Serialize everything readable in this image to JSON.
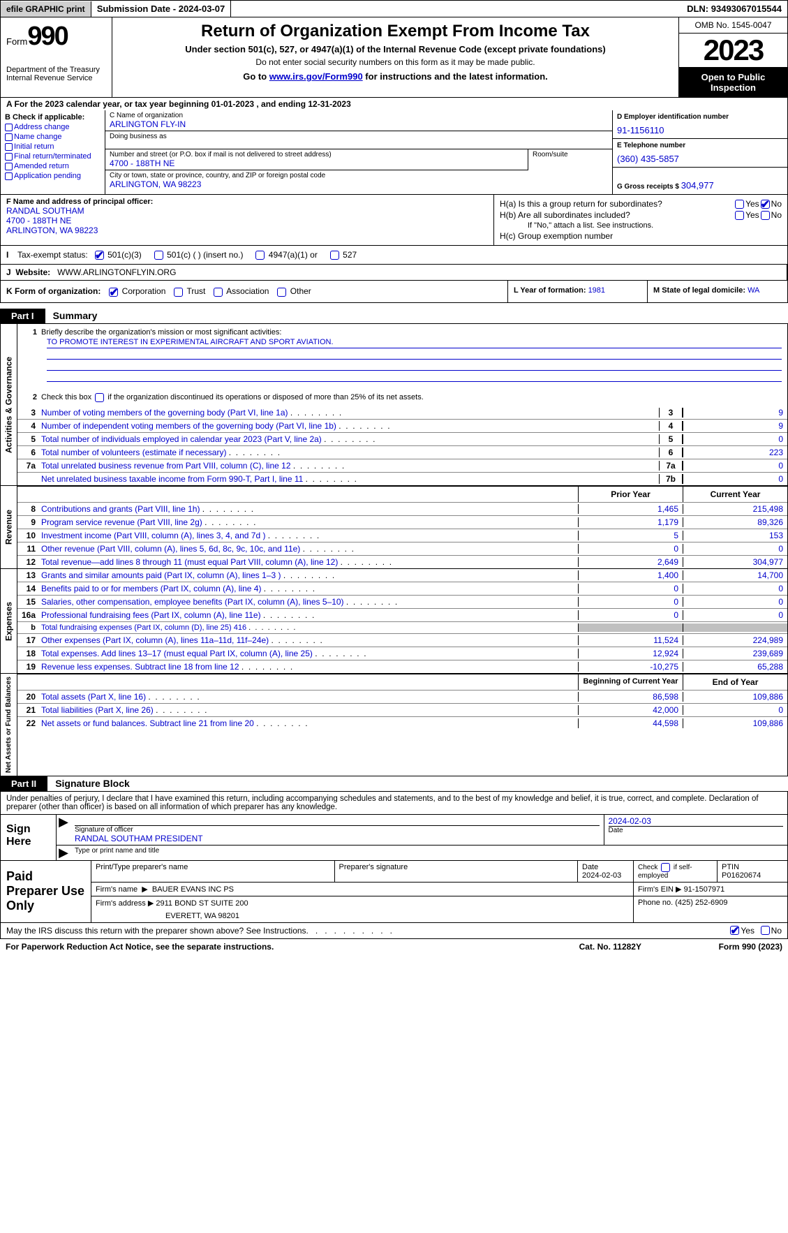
{
  "topbar": {
    "efile": "efile GRAPHIC print",
    "subdate_label": "Submission Date - ",
    "subdate": "2024-03-07",
    "dln_label": "DLN: ",
    "dln": "93493067015544"
  },
  "header": {
    "form_prefix": "Form",
    "form_num": "990",
    "dept": "Department of the Treasury\nInternal Revenue Service",
    "title": "Return of Organization Exempt From Income Tax",
    "sub1": "Under section 501(c), 527, or 4947(a)(1) of the Internal Revenue Code (except private foundations)",
    "sub2": "Do not enter social security numbers on this form as it may be made public.",
    "sub3_pre": "Go to ",
    "sub3_link": "www.irs.gov/Form990",
    "sub3_post": " for instructions and the latest information.",
    "omb": "OMB No. 1545-0047",
    "year": "2023",
    "open": "Open to Public Inspection"
  },
  "row_a": "A For the 2023 calendar year, or tax year beginning 01-01-2023    , and ending 12-31-2023",
  "col_b": {
    "title": "B Check if applicable:",
    "opts": [
      "Address change",
      "Name change",
      "Initial return",
      "Final return/terminated",
      "Amended return",
      "Application pending"
    ]
  },
  "col_c": {
    "name_lbl": "C Name of organization",
    "name": "ARLINGTON FLY-IN",
    "dba_lbl": "Doing business as",
    "dba": "",
    "addr_lbl": "Number and street (or P.O. box if mail is not delivered to street address)",
    "addr": "4700 - 188TH NE",
    "room_lbl": "Room/suite",
    "city_lbl": "City or town, state or province, country, and ZIP or foreign postal code",
    "city": "ARLINGTON, WA  98223"
  },
  "col_deg": {
    "d_lbl": "D Employer identification number",
    "d_val": "91-1156110",
    "e_lbl": "E Telephone number",
    "e_val": "(360) 435-5857",
    "g_lbl": "G Gross receipts $ ",
    "g_val": "304,977"
  },
  "col_f": {
    "lbl": "F  Name and address of principal officer:",
    "name": "RANDAL SOUTHAM",
    "addr1": "4700 - 188TH NE",
    "addr2": "ARLINGTON, WA  98223"
  },
  "col_h": {
    "ha": "H(a)  Is this a group return for subordinates?",
    "hb": "H(b)  Are all subordinates included?",
    "hb_note": "If \"No,\" attach a list. See instructions.",
    "hc": "H(c)  Group exemption number",
    "yes": "Yes",
    "no": "No"
  },
  "tax_exempt": {
    "letter": "I",
    "label": "Tax-exempt status:",
    "o1": "501(c)(3)",
    "o2": "501(c) (  ) (insert no.)",
    "o3": "4947(a)(1) or",
    "o4": "527"
  },
  "website": {
    "letter": "J",
    "label": "Website:",
    "val": "WWW.ARLINGTONFLYIN.ORG"
  },
  "row_k": {
    "label": "K Form of organization:",
    "opts": [
      "Corporation",
      "Trust",
      "Association",
      "Other"
    ],
    "l_lbl": "L Year of formation: ",
    "l_val": "1981",
    "m_lbl": "M State of legal domicile: ",
    "m_val": "WA"
  },
  "part1": {
    "hdr": "Part I",
    "title": "Summary",
    "l1_lbl": "Briefly describe the organization's mission or most significant activities:",
    "l1_val": "TO PROMOTE INTEREST IN EXPERIMENTAL AIRCRAFT AND SPORT AVIATION.",
    "l2": "Check this box         if the organization discontinued its operations or disposed of more than 25% of its net assets.",
    "vlab1": "Activities & Governance",
    "vlab2": "Revenue",
    "vlab3": "Expenses",
    "vlab4": "Net Assets or Fund Balances",
    "col_prior": "Prior Year",
    "col_curr": "Current Year",
    "col_beg": "Beginning of Current Year",
    "col_end": "End of Year",
    "lines_gov": [
      {
        "n": "3",
        "d": "Number of voting members of the governing body (Part VI, line 1a)",
        "box": "3",
        "v": "9"
      },
      {
        "n": "4",
        "d": "Number of independent voting members of the governing body (Part VI, line 1b)",
        "box": "4",
        "v": "9"
      },
      {
        "n": "5",
        "d": "Total number of individuals employed in calendar year 2023 (Part V, line 2a)",
        "box": "5",
        "v": "0"
      },
      {
        "n": "6",
        "d": "Total number of volunteers (estimate if necessary)",
        "box": "6",
        "v": "223"
      },
      {
        "n": "7a",
        "d": "Total unrelated business revenue from Part VIII, column (C), line 12",
        "box": "7a",
        "v": "0"
      },
      {
        "n": "",
        "d": "Net unrelated business taxable income from Form 990-T, Part I, line 11",
        "box": "7b",
        "v": "0"
      }
    ],
    "lines_rev": [
      {
        "n": "8",
        "d": "Contributions and grants (Part VIII, line 1h)",
        "p": "1,465",
        "c": "215,498"
      },
      {
        "n": "9",
        "d": "Program service revenue (Part VIII, line 2g)",
        "p": "1,179",
        "c": "89,326"
      },
      {
        "n": "10",
        "d": "Investment income (Part VIII, column (A), lines 3, 4, and 7d )",
        "p": "5",
        "c": "153"
      },
      {
        "n": "11",
        "d": "Other revenue (Part VIII, column (A), lines 5, 6d, 8c, 9c, 10c, and 11e)",
        "p": "0",
        "c": "0"
      },
      {
        "n": "12",
        "d": "Total revenue—add lines 8 through 11 (must equal Part VIII, column (A), line 12)",
        "p": "2,649",
        "c": "304,977"
      }
    ],
    "lines_exp": [
      {
        "n": "13",
        "d": "Grants and similar amounts paid (Part IX, column (A), lines 1–3 )",
        "p": "1,400",
        "c": "14,700"
      },
      {
        "n": "14",
        "d": "Benefits paid to or for members (Part IX, column (A), line 4)",
        "p": "0",
        "c": "0"
      },
      {
        "n": "15",
        "d": "Salaries, other compensation, employee benefits (Part IX, column (A), lines 5–10)",
        "p": "0",
        "c": "0"
      },
      {
        "n": "16a",
        "d": "Professional fundraising fees (Part IX, column (A), line 11e)",
        "p": "0",
        "c": "0"
      },
      {
        "n": "b",
        "d": "Total fundraising expenses (Part IX, column (D), line 25) 416",
        "p": "",
        "c": "",
        "shade": true,
        "small": true
      },
      {
        "n": "17",
        "d": "Other expenses (Part IX, column (A), lines 11a–11d, 11f–24e)",
        "p": "11,524",
        "c": "224,989"
      },
      {
        "n": "18",
        "d": "Total expenses. Add lines 13–17 (must equal Part IX, column (A), line 25)",
        "p": "12,924",
        "c": "239,689"
      },
      {
        "n": "19",
        "d": "Revenue less expenses. Subtract line 18 from line 12",
        "p": "-10,275",
        "c": "65,288"
      }
    ],
    "lines_net": [
      {
        "n": "20",
        "d": "Total assets (Part X, line 16)",
        "p": "86,598",
        "c": "109,886"
      },
      {
        "n": "21",
        "d": "Total liabilities (Part X, line 26)",
        "p": "42,000",
        "c": "0"
      },
      {
        "n": "22",
        "d": "Net assets or fund balances. Subtract line 21 from line 20",
        "p": "44,598",
        "c": "109,886"
      }
    ]
  },
  "part2": {
    "hdr": "Part II",
    "title": "Signature Block",
    "decl": "Under penalties of perjury, I declare that I have examined this return, including accompanying schedules and statements, and to the best of my knowledge and belief, it is true, correct, and complete. Declaration of preparer (other than officer) is based on all information of which preparer has any knowledge.",
    "sign_here": "Sign Here",
    "sig_lbl": "Signature of officer",
    "sig_name": "RANDAL SOUTHAM PRESIDENT",
    "sig_type_lbl": "Type or print name and title",
    "date_lbl": "Date",
    "date_val": "2024-02-03",
    "paid": "Paid Preparer Use Only",
    "prep_name_lbl": "Print/Type preparer's name",
    "prep_sig_lbl": "Preparer's signature",
    "prep_date_lbl": "Date",
    "prep_date": "2024-02-03",
    "prep_chk_lbl": "Check         if self-employed",
    "ptin_lbl": "PTIN",
    "ptin": "P01620674",
    "firm_name_lbl": "Firm's name",
    "firm_name": "BAUER EVANS INC PS",
    "firm_ein_lbl": "Firm's EIN",
    "firm_ein": "91-1507971",
    "firm_addr_lbl": "Firm's address",
    "firm_addr1": "2911 BOND ST SUITE 200",
    "firm_addr2": "EVERETT, WA  98201",
    "phone_lbl": "Phone no.",
    "phone": "(425) 252-6909"
  },
  "footer": {
    "q": "May the IRS discuss this return with the preparer shown above? See Instructions.",
    "yes": "Yes",
    "no": "No"
  },
  "bottom": {
    "l": "For Paperwork Reduction Act Notice, see the separate instructions.",
    "m": "Cat. No. 11282Y",
    "r": "Form 990 (2023)"
  }
}
